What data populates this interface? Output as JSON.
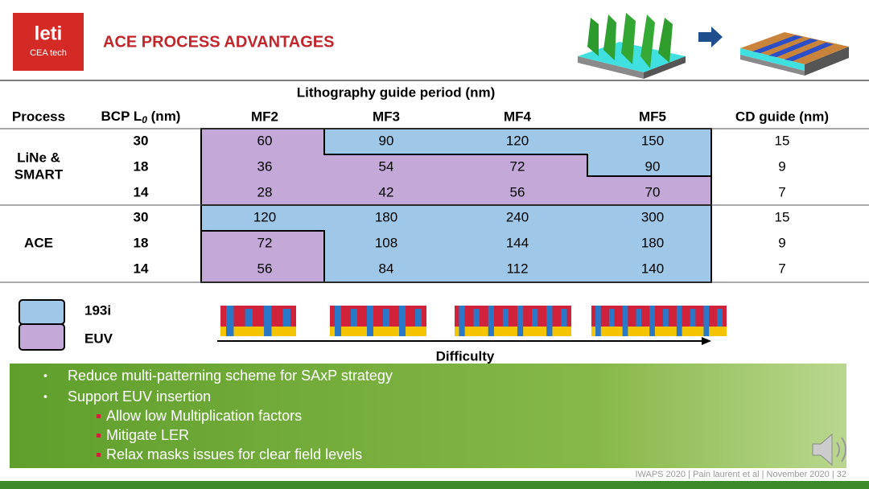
{
  "logo": {
    "name": "leti",
    "tagline": "CEA tech"
  },
  "header": {
    "title": "ACE PROCESS ADVANTAGES"
  },
  "table": {
    "group_header": "Lithography guide period (nm)",
    "columns": {
      "process": "Process",
      "bcp": {
        "prefix": "BCP L",
        "subscript": "0",
        "suffix": " (nm)"
      },
      "mf": [
        "MF2",
        "MF3",
        "MF4",
        "MF5"
      ],
      "cd": "CD guide (nm)"
    },
    "groups": [
      {
        "process": [
          "LiNe &",
          "SMART"
        ],
        "rows": [
          {
            "bcp": 30,
            "mf": [
              60,
              90,
              120,
              150
            ],
            "cd": 15
          },
          {
            "bcp": 18,
            "mf": [
              36,
              54,
              72,
              90
            ],
            "cd": 9
          },
          {
            "bcp": 14,
            "mf": [
              28,
              42,
              56,
              70
            ],
            "cd": 7
          }
        ]
      },
      {
        "process": [
          "ACE"
        ],
        "rows": [
          {
            "bcp": 30,
            "mf": [
              120,
              180,
              240,
              300
            ],
            "cd": 15
          },
          {
            "bcp": 18,
            "mf": [
              72,
              108,
              144,
              180
            ],
            "cd": 9
          },
          {
            "bcp": 14,
            "mf": [
              56,
              84,
              112,
              140
            ],
            "cd": 7
          }
        ]
      }
    ]
  },
  "legend": [
    "193i",
    "EUV"
  ],
  "axis_label": "Difficulty",
  "bullets": [
    "Reduce multi-patterning scheme for SAxP strategy",
    "Support EUV insertion"
  ],
  "sub_bullets": [
    "Allow low Multiplication factors",
    "Mitigate LER",
    "Relax masks issues for clear field levels"
  ],
  "footer": "IWAPS 2020 | Pain laurent et al | November 2020 | 32"
}
